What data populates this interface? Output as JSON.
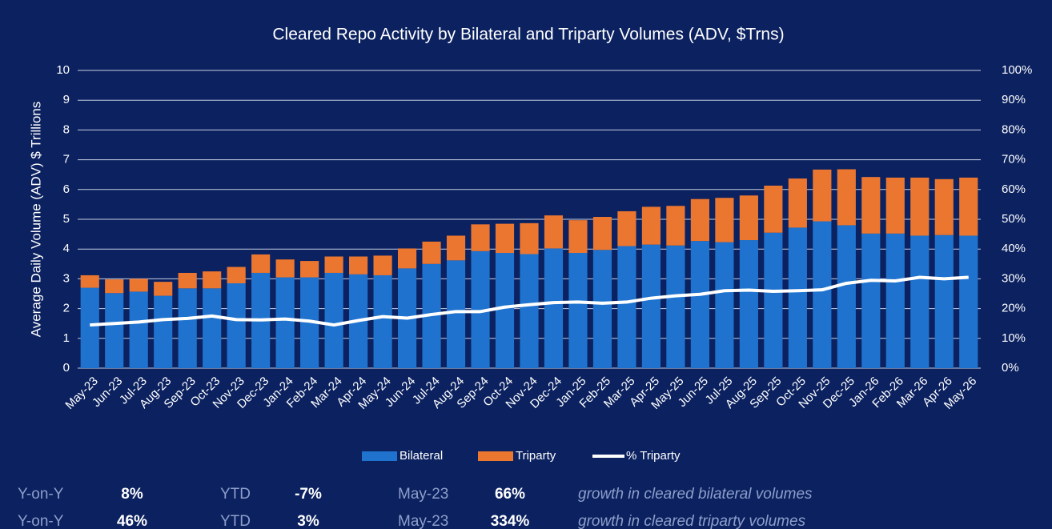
{
  "chart_data": {
    "type": "bar",
    "title": "Cleared Repo Activity by Bilateral and Triparty Volumes (ADV, $Trns)",
    "y_label": "Average Daily Volume (ADV) $ Trillions",
    "categories": [
      "May-23",
      "Jun-23",
      "Jul-23",
      "Aug-23",
      "Sep-23",
      "Oct-23",
      "Nov-23",
      "Dec-23",
      "Jan-24",
      "Feb-24",
      "Mar-24",
      "Apr-24",
      "May-24",
      "Jun-24",
      "Jul-24",
      "Aug-24",
      "Sep-24",
      "Oct-24",
      "Nov-24",
      "Dec-24",
      "Jan-25",
      "Feb-25",
      "Mar-25",
      "Apr-25",
      "May-25",
      "Jun-25",
      "Jul-25",
      "Aug-25",
      "Sep-25",
      "Oct-25",
      "Nov-25",
      "Dec-25",
      "Jan-26",
      "Feb-26",
      "Mar-26",
      "Apr-26",
      "May-26"
    ],
    "series": [
      {
        "name": "Bilateral",
        "color": "#1f73cf",
        "type": "bar",
        "values": [
          2.7,
          2.52,
          2.57,
          2.43,
          2.68,
          2.68,
          2.85,
          3.2,
          3.05,
          3.05,
          3.2,
          3.15,
          3.12,
          3.35,
          3.5,
          3.62,
          3.93,
          3.87,
          3.83,
          4.02,
          3.87,
          3.97,
          4.1,
          4.15,
          4.12,
          4.27,
          4.23,
          4.3,
          4.55,
          4.72,
          4.93,
          4.8,
          4.52,
          4.52,
          4.45,
          4.47,
          4.45
        ]
      },
      {
        "name": "Triparty",
        "color": "#ea7630",
        "type": "bar",
        "values": [
          0.42,
          0.46,
          0.43,
          0.47,
          0.52,
          0.57,
          0.55,
          0.62,
          0.6,
          0.55,
          0.55,
          0.6,
          0.66,
          0.67,
          0.75,
          0.83,
          0.9,
          0.98,
          1.04,
          1.11,
          1.1,
          1.11,
          1.17,
          1.27,
          1.33,
          1.41,
          1.49,
          1.5,
          1.58,
          1.65,
          1.74,
          1.88,
          1.9,
          1.88,
          1.95,
          1.88,
          1.95
        ]
      },
      {
        "name": "% Triparty",
        "color": "#ffffff",
        "type": "line",
        "axis": "y2",
        "values": [
          14.5,
          15,
          15.5,
          16.3,
          16.7,
          17.5,
          16.3,
          16.2,
          16.5,
          15.8,
          14.5,
          16,
          17.3,
          16.8,
          18,
          19,
          19,
          20.5,
          21.3,
          22,
          22.2,
          21.8,
          22.2,
          23.5,
          24.3,
          24.8,
          26,
          26.2,
          25.8,
          26,
          26.3,
          28.5,
          29.5,
          29.3,
          30.5,
          30,
          30.5
        ]
      }
    ],
    "stacked": true,
    "ylim": [
      0,
      10
    ],
    "yticks": [
      0,
      1,
      2,
      3,
      4,
      5,
      6,
      7,
      8,
      9,
      10
    ],
    "y2lim": [
      0,
      100
    ],
    "y2ticks": [
      {
        "value": 0,
        "label": "0%"
      },
      {
        "value": 10,
        "label": "10%"
      },
      {
        "value": 20,
        "label": "20%"
      },
      {
        "value": 30,
        "label": "30%"
      },
      {
        "value": 40,
        "label": "40%"
      },
      {
        "value": 50,
        "label": "50%"
      },
      {
        "value": 60,
        "label": "60%"
      },
      {
        "value": 70,
        "label": "70%"
      },
      {
        "value": 80,
        "label": "80%"
      },
      {
        "value": 90,
        "label": "90%"
      },
      {
        "value": 100,
        "label": "100%"
      }
    ],
    "grid": true,
    "legend": "bottom"
  },
  "footer": {
    "rows": [
      [
        "Y-on-Y",
        "8%",
        "YTD",
        "-7%",
        "May-23",
        "66%",
        "growth in cleared bilateral volumes"
      ],
      [
        "Y-on-Y",
        "46%",
        "YTD",
        "3%",
        "May-23",
        "334%",
        "growth in cleared triparty volumes"
      ]
    ]
  }
}
